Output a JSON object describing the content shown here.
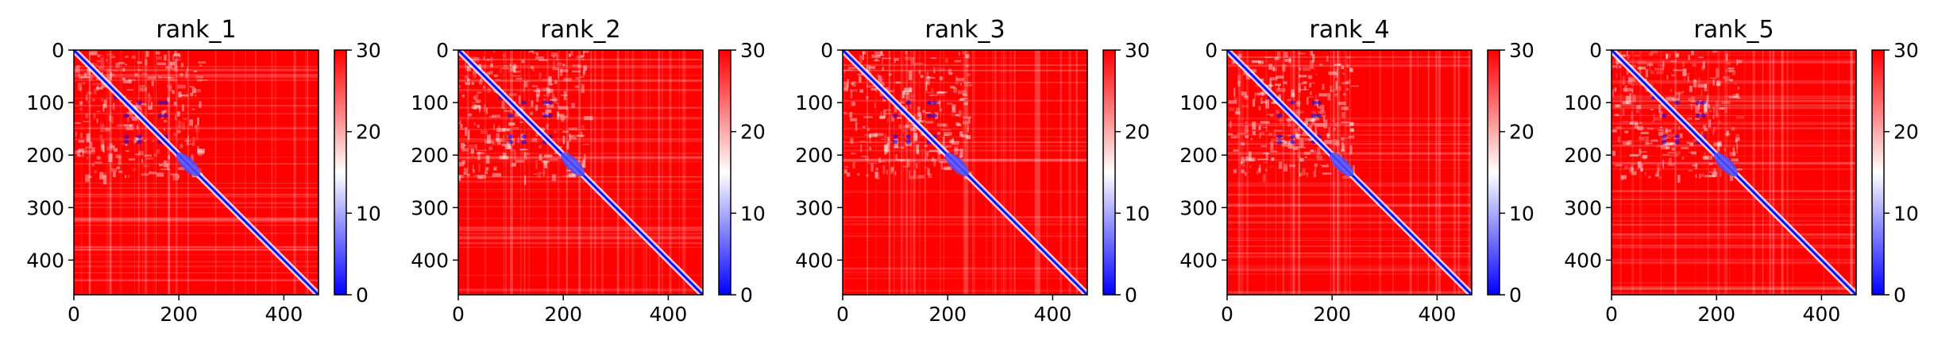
{
  "figure": {
    "background": "#ffffff"
  },
  "chart_data": [
    {
      "type": "heatmap",
      "title": "rank_1",
      "x_ticks": [
        0,
        200,
        400
      ],
      "y_ticks": [
        0,
        100,
        200,
        300,
        400
      ],
      "xlim": [
        0,
        466
      ],
      "ylim": [
        466,
        0
      ],
      "colorbar": {
        "range": [
          0,
          30
        ],
        "ticks": [
          0,
          10,
          20,
          30
        ],
        "colormap": "bwr",
        "colors": [
          "#0000ff",
          "#ffffff",
          "#ff0000"
        ]
      },
      "xlabel": "",
      "ylabel": ""
    },
    {
      "type": "heatmap",
      "title": "rank_2",
      "x_ticks": [
        0,
        200,
        400
      ],
      "y_ticks": [
        0,
        100,
        200,
        300,
        400
      ],
      "xlim": [
        0,
        466
      ],
      "ylim": [
        466,
        0
      ],
      "colorbar": {
        "range": [
          0,
          30
        ],
        "ticks": [
          0,
          10,
          20,
          30
        ],
        "colormap": "bwr",
        "colors": [
          "#0000ff",
          "#ffffff",
          "#ff0000"
        ]
      },
      "xlabel": "",
      "ylabel": ""
    },
    {
      "type": "heatmap",
      "title": "rank_3",
      "x_ticks": [
        0,
        200,
        400
      ],
      "y_ticks": [
        0,
        100,
        200,
        300,
        400
      ],
      "xlim": [
        0,
        466
      ],
      "ylim": [
        466,
        0
      ],
      "colorbar": {
        "range": [
          0,
          30
        ],
        "ticks": [
          0,
          10,
          20,
          30
        ],
        "colormap": "bwr",
        "colors": [
          "#0000ff",
          "#ffffff",
          "#ff0000"
        ]
      },
      "xlabel": "",
      "ylabel": ""
    },
    {
      "type": "heatmap",
      "title": "rank_4",
      "x_ticks": [
        0,
        200,
        400
      ],
      "y_ticks": [
        0,
        100,
        200,
        300,
        400
      ],
      "xlim": [
        0,
        466
      ],
      "ylim": [
        466,
        0
      ],
      "colorbar": {
        "range": [
          0,
          30
        ],
        "ticks": [
          0,
          10,
          20,
          30
        ],
        "colormap": "bwr",
        "colors": [
          "#0000ff",
          "#ffffff",
          "#ff0000"
        ]
      },
      "xlabel": "",
      "ylabel": ""
    },
    {
      "type": "heatmap",
      "title": "rank_5",
      "x_ticks": [
        0,
        200,
        400
      ],
      "y_ticks": [
        0,
        100,
        200,
        300,
        400
      ],
      "xlim": [
        0,
        466
      ],
      "ylim": [
        466,
        0
      ],
      "colorbar": {
        "range": [
          0,
          30
        ],
        "ticks": [
          0,
          10,
          20,
          30
        ],
        "colormap": "bwr",
        "colors": [
          "#0000ff",
          "#ffffff",
          "#ff0000"
        ]
      },
      "xlabel": "",
      "ylabel": ""
    }
  ]
}
